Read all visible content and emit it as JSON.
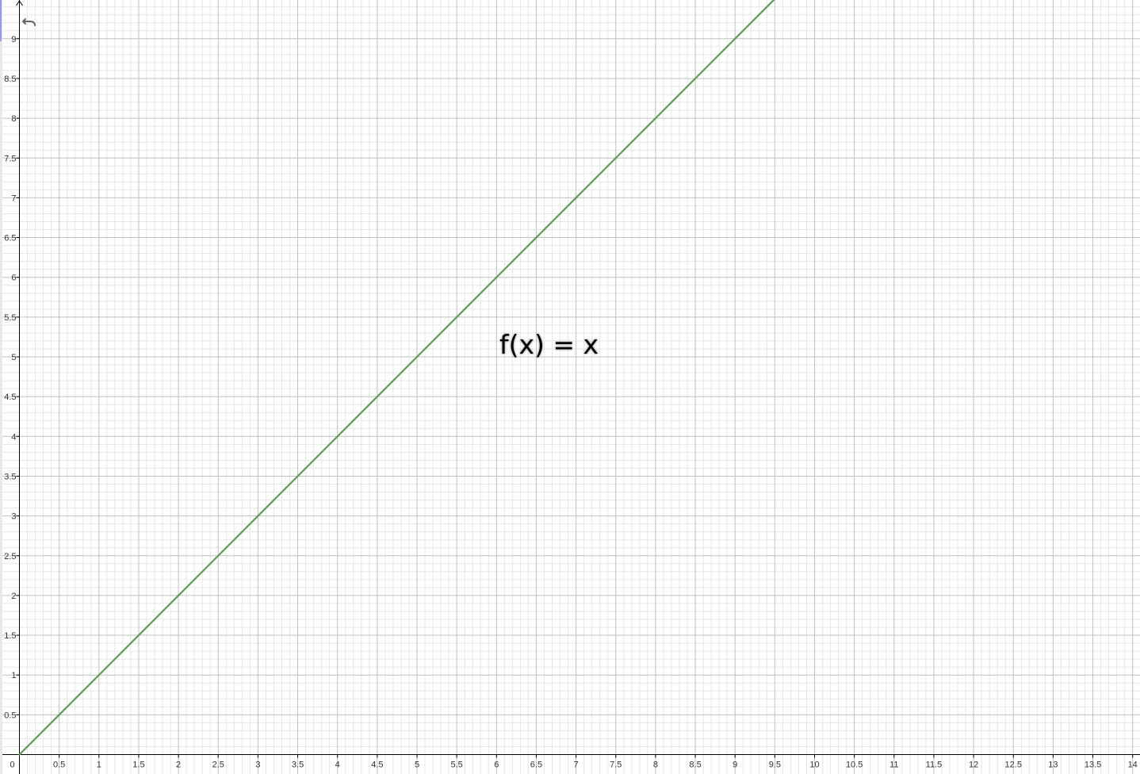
{
  "toolbar": {
    "undo_icon": "undo-icon"
  },
  "graph": {
    "label": "f(x) = x",
    "line_color": "#5f9a5a",
    "major_grid_color": "#c0c0c0",
    "minor_grid_color": "#e6e6e6",
    "axis_color": "#000000"
  },
  "chart_data": {
    "type": "line",
    "title": "",
    "xlabel": "",
    "ylabel": "",
    "xlim": [
      0,
      14.2
    ],
    "ylim": [
      0,
      9.5
    ],
    "x_step": 0.5,
    "y_step": 0.5,
    "grid": true,
    "x_ticks": [
      "0",
      "0.5",
      "1",
      "1.5",
      "2",
      "2.5",
      "3",
      "3.5",
      "4",
      "4.5",
      "5",
      "5.5",
      "6",
      "6.5",
      "7",
      "7.5",
      "8",
      "8.5",
      "9",
      "9.5",
      "10",
      "10.5",
      "11",
      "11.5",
      "12",
      "12.5",
      "13",
      "13.5",
      "14"
    ],
    "y_ticks": [
      "0.5",
      "1",
      "1.5",
      "2",
      "2.5",
      "3",
      "3.5",
      "4",
      "4.5",
      "5",
      "5.5",
      "6",
      "6.5",
      "7",
      "7.5",
      "8",
      "8.5",
      "9"
    ],
    "series": [
      {
        "name": "f(x) = x",
        "x": [
          0,
          9.5
        ],
        "y": [
          0,
          9.5
        ]
      }
    ]
  }
}
